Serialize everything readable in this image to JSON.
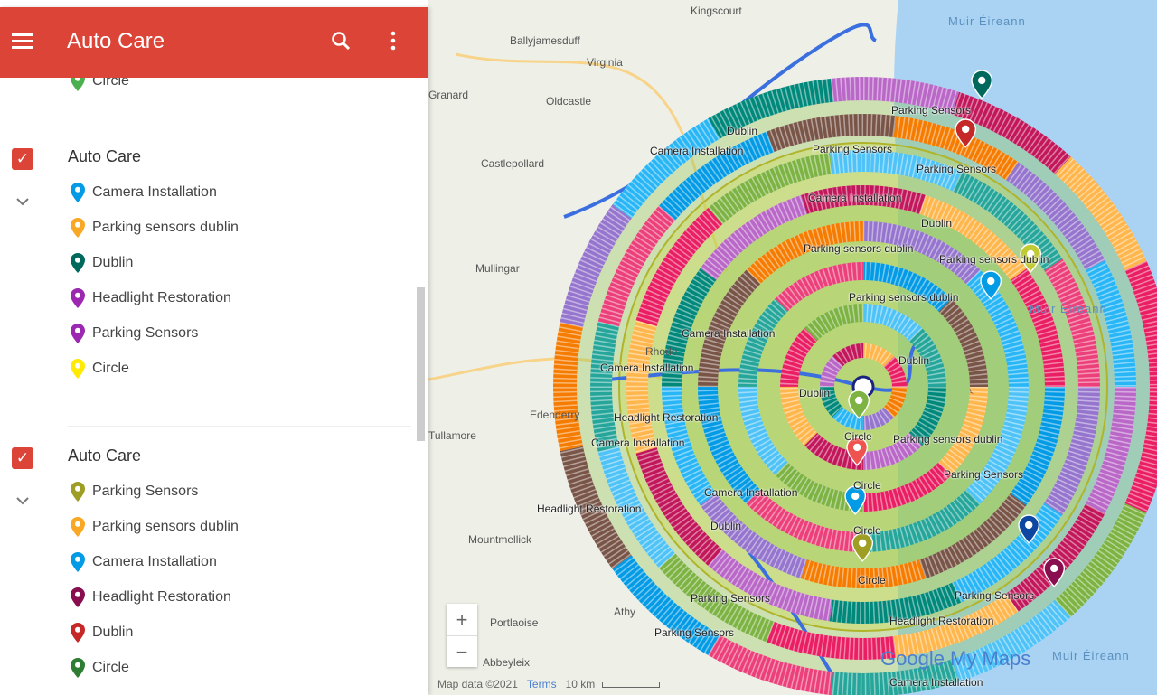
{
  "header": {
    "title": "Auto Care",
    "menu_icon": "hamburger-icon",
    "search_icon": "search-icon",
    "more_icon": "more-vert-icon",
    "color": "#db4437"
  },
  "partial_item": {
    "label": "Circle",
    "color": "#4caf50"
  },
  "layers": [
    {
      "title": "Auto Care",
      "checked": true,
      "items": [
        {
          "label": "Camera Installation",
          "color": "#039be5"
        },
        {
          "label": "Parking sensors dublin",
          "color": "#f9a825"
        },
        {
          "label": "Dublin",
          "color": "#00695c"
        },
        {
          "label": "Headlight Restoration",
          "color": "#9c27b0"
        },
        {
          "label": "Parking Sensors",
          "color": "#9c27b0"
        },
        {
          "label": "Circle",
          "color": "#ffea00"
        }
      ]
    },
    {
      "title": "Auto Care",
      "checked": true,
      "items": [
        {
          "label": "Parking Sensors",
          "color": "#9e9d24"
        },
        {
          "label": "Parking sensors dublin",
          "color": "#f9a825"
        },
        {
          "label": "Camera Installation",
          "color": "#039be5"
        },
        {
          "label": "Headlight Restoration",
          "color": "#880e4f"
        },
        {
          "label": "Dublin",
          "color": "#c62828"
        },
        {
          "label": "Circle",
          "color": "#2e7d32"
        }
      ]
    }
  ],
  "map": {
    "places": [
      "Kingscourt",
      "Ballyjamesduff",
      "Virginia",
      "Oldcastle",
      "Castlepollard",
      "Mullingar",
      "Granard",
      "Tullamore",
      "Mountmellick",
      "Portlaoise",
      "Athy",
      "Abbeyleix",
      "Edenderry",
      "Rhode"
    ],
    "sea_labels": [
      "Muir Éireann",
      "Muir Éireann",
      "Muir Éireann"
    ],
    "marker_labels": [
      "Dublin",
      "Parking Sensors",
      "Parking Sensors",
      "Camera Installation",
      "Dublin",
      "Parking Sensors",
      "Camera Installation",
      "Parking sensors dublin",
      "Parking sensors dublin",
      "Dublin",
      "Parking sensors dublin",
      "Camera Installation",
      "Camera Installation",
      "Dublin",
      "Circle",
      "Headlight Restoration",
      "Camera Installation",
      "Parking sensors dublin",
      "Circle",
      "Parking Sensors",
      "Camera Installation",
      "Headlight Restoration",
      "Circle",
      "Dublin",
      "Circle",
      "Parking Sensors",
      "Parking Sensors",
      "Headlight Restoration",
      "Parking Sensors",
      "Camera Installation"
    ],
    "stripe_colors": [
      "#e91e63",
      "#039be5",
      "#00897b",
      "#7cb342",
      "#795548",
      "#ba68c8",
      "#4fc3f7",
      "#f57c00",
      "#c2185b",
      "#26a69a",
      "#9575cd",
      "#ffb74d",
      "#ec407a",
      "#29b6f6"
    ],
    "zoom_in": "+",
    "zoom_out": "−",
    "attribution": "Map data ©2021",
    "terms": "Terms",
    "scale": "10 km",
    "logo": "Google My Maps"
  }
}
